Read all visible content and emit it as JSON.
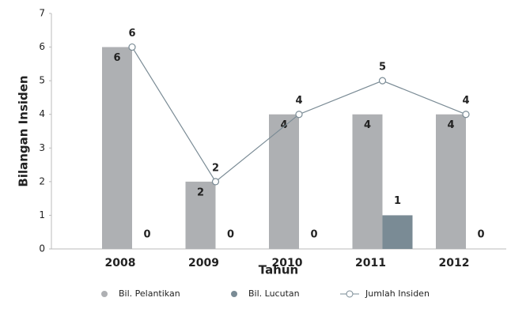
{
  "chart_data": {
    "type": "bar",
    "x_label": "Tahun",
    "y_label": "Bilangan Insiden",
    "categories": [
      "2008",
      "2009",
      "2010",
      "2011",
      "2012"
    ],
    "series": [
      {
        "name": "Bil. Pelantikan",
        "type": "bar",
        "color": "#aeb0b3",
        "values": [
          6,
          2,
          4,
          4,
          4
        ]
      },
      {
        "name": "Bil. Lucutan",
        "type": "bar",
        "color": "#7a8b95",
        "values": [
          0,
          0,
          0,
          1,
          0
        ]
      },
      {
        "name": "Jumlah Insiden",
        "type": "line",
        "color": "#7a8b95",
        "values": [
          6,
          2,
          4,
          5,
          4
        ]
      }
    ],
    "ylim": [
      0,
      7
    ],
    "yticks": [
      0,
      1,
      2,
      3,
      4,
      5,
      6,
      7
    ],
    "legend": "bottom"
  }
}
